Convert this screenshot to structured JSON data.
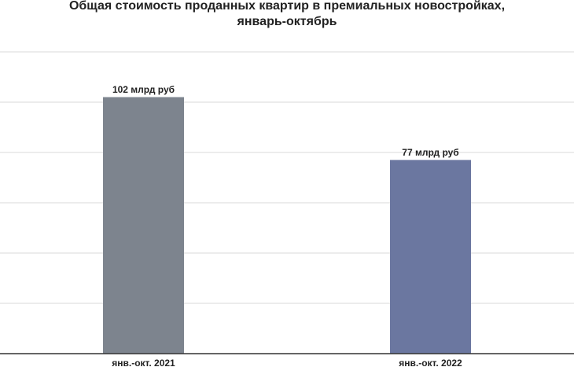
{
  "chart_data": {
    "type": "bar",
    "title": [
      "Общая стоимость проданных квартир в премиальных новостройках,",
      "январь-октябрь"
    ],
    "categories": [
      "янв.-окт. 2021",
      "янв.-окт. 2022"
    ],
    "values": [
      102,
      77
    ],
    "value_labels": [
      "102 млрд руб",
      "77 млрд руб"
    ],
    "colors": [
      "#7d848e",
      "#6b77a0"
    ],
    "ylim": [
      0,
      120
    ],
    "yticks": [
      0,
      20,
      40,
      60,
      80,
      100,
      120
    ],
    "grid": true
  }
}
